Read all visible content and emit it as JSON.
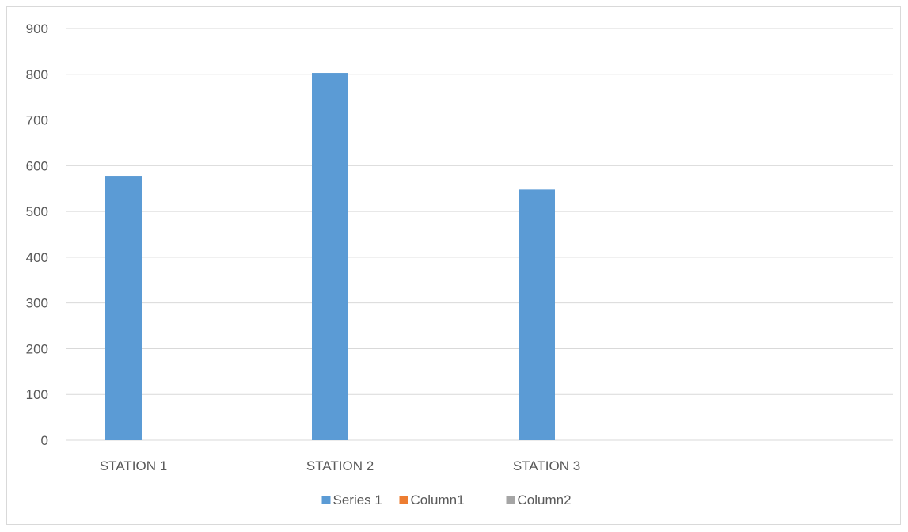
{
  "chart_data": {
    "type": "bar",
    "categories": [
      "STATION 1",
      "STATION 2",
      "STATION 3",
      ""
    ],
    "series": [
      {
        "name": "Series 1",
        "values": [
          578,
          803,
          548,
          null
        ],
        "color": "#5b9bd5"
      },
      {
        "name": "Column1",
        "values": [
          null,
          null,
          null,
          null
        ],
        "color": "#ed7d31"
      },
      {
        "name": "Column2",
        "values": [
          null,
          null,
          null,
          null
        ],
        "color": "#a5a5a5"
      }
    ],
    "ylim": [
      0,
      900
    ],
    "yticks": [
      0,
      100,
      200,
      300,
      400,
      500,
      600,
      700,
      800,
      900
    ],
    "grid": true,
    "legend_position": "bottom"
  }
}
